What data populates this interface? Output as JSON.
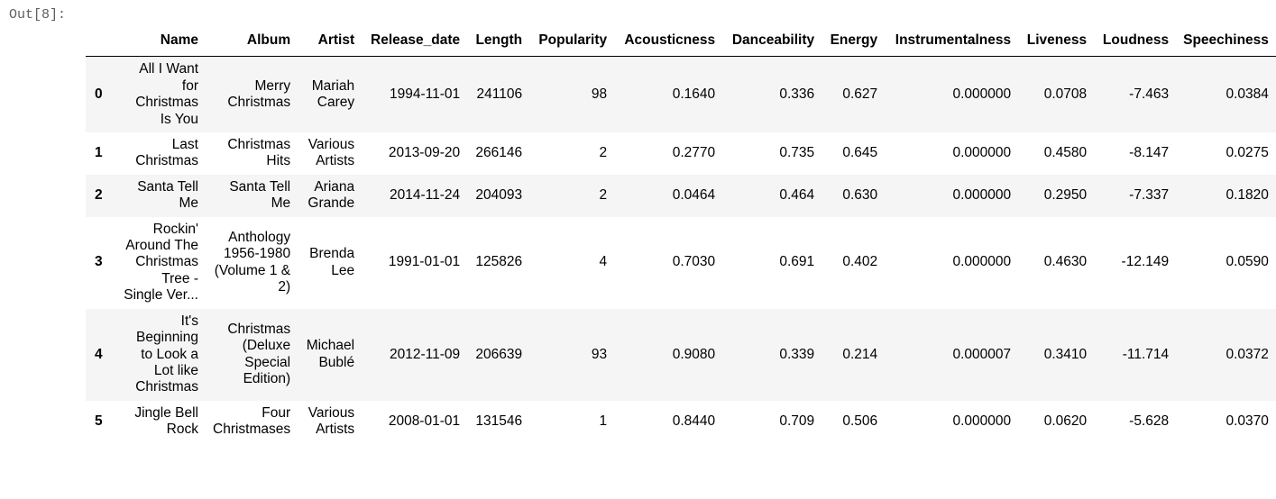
{
  "output_prompt": "Out[8]:",
  "table": {
    "columns": [
      "",
      "Name",
      "Album",
      "Artist",
      "Release_date",
      "Length",
      "Popularity",
      "Acousticness",
      "Danceability",
      "Energy",
      "Instrumentalness",
      "Liveness",
      "Loudness",
      "Speechiness"
    ],
    "rows": [
      {
        "index": "0",
        "name": "All I Want for Christmas Is You",
        "album": "Merry Christmas",
        "artist": "Mariah Carey",
        "release_date": "1994-11-01",
        "length": "241106",
        "popularity": "98",
        "acousticness": "0.1640",
        "danceability": "0.336",
        "energy": "0.627",
        "instrumentalness": "0.000000",
        "liveness": "0.0708",
        "loudness": "-7.463",
        "speechiness": "0.0384"
      },
      {
        "index": "1",
        "name": "Last Christmas",
        "album": "Christmas Hits",
        "artist": "Various Artists",
        "release_date": "2013-09-20",
        "length": "266146",
        "popularity": "2",
        "acousticness": "0.2770",
        "danceability": "0.735",
        "energy": "0.645",
        "instrumentalness": "0.000000",
        "liveness": "0.4580",
        "loudness": "-8.147",
        "speechiness": "0.0275"
      },
      {
        "index": "2",
        "name": "Santa Tell Me",
        "album": "Santa Tell Me",
        "artist": "Ariana Grande",
        "release_date": "2014-11-24",
        "length": "204093",
        "popularity": "2",
        "acousticness": "0.0464",
        "danceability": "0.464",
        "energy": "0.630",
        "instrumentalness": "0.000000",
        "liveness": "0.2950",
        "loudness": "-7.337",
        "speechiness": "0.1820"
      },
      {
        "index": "3",
        "name": "Rockin' Around The Christmas Tree - Single Ver...",
        "album": "Anthology 1956-1980 (Volume 1 & 2)",
        "artist": "Brenda Lee",
        "release_date": "1991-01-01",
        "length": "125826",
        "popularity": "4",
        "acousticness": "0.7030",
        "danceability": "0.691",
        "energy": "0.402",
        "instrumentalness": "0.000000",
        "liveness": "0.4630",
        "loudness": "-12.149",
        "speechiness": "0.0590"
      },
      {
        "index": "4",
        "name": "It's Beginning to Look a Lot like Christmas",
        "album": "Christmas (Deluxe Special Edition)",
        "artist": "Michael Bublé",
        "release_date": "2012-11-09",
        "length": "206639",
        "popularity": "93",
        "acousticness": "0.9080",
        "danceability": "0.339",
        "energy": "0.214",
        "instrumentalness": "0.000007",
        "liveness": "0.3410",
        "loudness": "-11.714",
        "speechiness": "0.0372"
      },
      {
        "index": "5",
        "name": "Jingle Bell Rock",
        "album": "Four Christmases",
        "artist": "Various Artists",
        "release_date": "2008-01-01",
        "length": "131546",
        "popularity": "1",
        "acousticness": "0.8440",
        "danceability": "0.709",
        "energy": "0.506",
        "instrumentalness": "0.000000",
        "liveness": "0.0620",
        "loudness": "-5.628",
        "speechiness": "0.0370"
      }
    ]
  }
}
